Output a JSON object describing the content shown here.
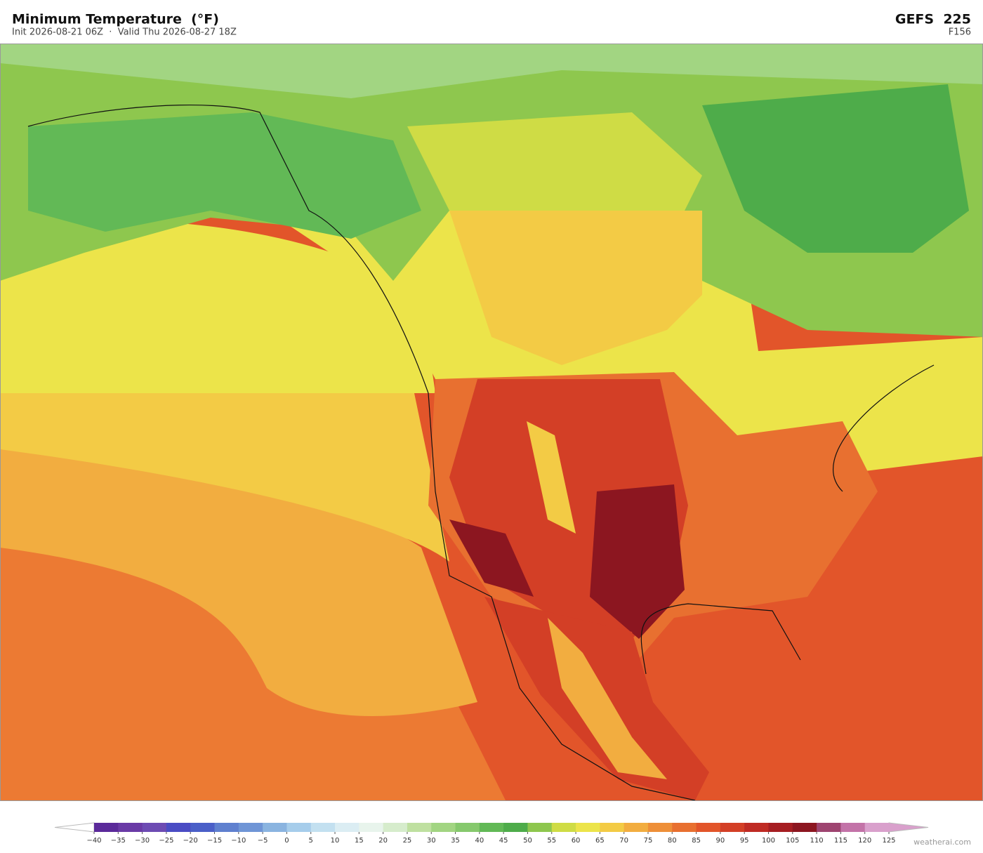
{
  "header": {
    "title": "Minimum Temperature  (°F)",
    "subtitle": "Init 2026-08-21 06Z  ·  Valid Thu 2026-08-27 18Z",
    "model": "GEFS  225",
    "forecast_hour": "F156"
  },
  "colorbar": {
    "ticks": [
      {
        "value": -40,
        "label": "−40"
      },
      {
        "value": -35,
        "label": "−35"
      },
      {
        "value": -30,
        "label": "−30"
      },
      {
        "value": -25,
        "label": "−25"
      },
      {
        "value": -20,
        "label": "−20"
      },
      {
        "value": -15,
        "label": "−15"
      },
      {
        "value": -10,
        "label": "−10"
      },
      {
        "value": -5,
        "label": "−5"
      },
      0,
      5,
      10,
      15,
      20,
      25,
      30,
      35,
      40,
      45,
      50,
      55,
      60,
      65,
      70,
      75,
      80,
      85,
      90,
      95,
      100,
      105,
      110,
      115,
      120,
      125
    ],
    "colors": [
      "#5b2a9a",
      "#6a3aa6",
      "#6d4bb3",
      "#4a4cc4",
      "#4a5fc8",
      "#5f80cf",
      "#6f95d6",
      "#8ab4e0",
      "#a6cdeb",
      "#c3e0f0",
      "#dbedf3",
      "#e8f4ec",
      "#d6eccc",
      "#bfe0a0",
      "#a2d582",
      "#86c96d",
      "#62b956",
      "#4eac4a",
      "#8ec74e",
      "#cfdc45",
      "#ece44a",
      "#f3cb45",
      "#f2ad40",
      "#ee8f38",
      "#e87030",
      "#e2552a",
      "#d33f26",
      "#bf2b24",
      "#a61e22",
      "#8c1620",
      "#9e4470",
      "#c373a8",
      "#d9a0cc"
    ],
    "under_color": "#ffffff",
    "over_color": "#d9a0cc"
  },
  "watermark": "weatherai.com"
}
